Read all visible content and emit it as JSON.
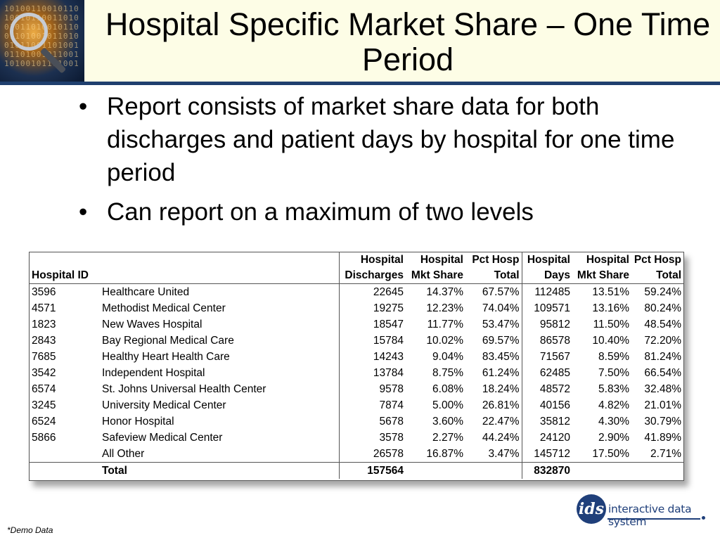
{
  "slide": {
    "title": "Hospital Specific Market Share – One Time Period",
    "bullets": [
      "Report consists of market share data for both discharges and patient days by hospital for one time period",
      "Can report on a maximum of two levels"
    ],
    "bullet_glyph": "•",
    "footnote": "*Demo Data",
    "logo_text": "interactive data system",
    "logo_mark": "ids"
  },
  "table": {
    "header_top": [
      "",
      "",
      "Hospital",
      "Hospital",
      "Pct Hosp",
      "Hospital",
      "Hospital",
      "Pct Hosp"
    ],
    "header_bottom": [
      "Hospital ID",
      "",
      "Discharges",
      "Mkt Share",
      "Total",
      "Days",
      "Mkt Share",
      "Total"
    ],
    "rows": [
      [
        "3596",
        "Healthcare United",
        "22645",
        "14.37%",
        "67.57%",
        "112485",
        "13.51%",
        "59.24%"
      ],
      [
        "4571",
        "Methodist Medical Center",
        "19275",
        "12.23%",
        "74.04%",
        "109571",
        "13.16%",
        "80.24%"
      ],
      [
        "1823",
        "New Waves Hospital",
        "18547",
        "11.77%",
        "53.47%",
        "95812",
        "11.50%",
        "48.54%"
      ],
      [
        "2843",
        "Bay Regional Medical Care",
        "15784",
        "10.02%",
        "69.57%",
        "86578",
        "10.40%",
        "72.20%"
      ],
      [
        "7685",
        "Healthy Heart Health Care",
        "14243",
        "9.04%",
        "83.45%",
        "71567",
        "8.59%",
        "81.24%"
      ],
      [
        "3542",
        "Independent Hospital",
        "13784",
        "8.75%",
        "61.24%",
        "62485",
        "7.50%",
        "66.54%"
      ],
      [
        "6574",
        "St. Johns Universal Health Center",
        "9578",
        "6.08%",
        "18.24%",
        "48572",
        "5.83%",
        "32.48%"
      ],
      [
        "3245",
        "University Medical Center",
        "7874",
        "5.00%",
        "26.81%",
        "40156",
        "4.82%",
        "21.01%"
      ],
      [
        "6524",
        "Honor Hospital",
        "5678",
        "3.60%",
        "22.47%",
        "35812",
        "4.30%",
        "30.79%"
      ],
      [
        "5866",
        "Safeview Medical Center",
        "3578",
        "2.27%",
        "44.24%",
        "24120",
        "2.90%",
        "41.89%"
      ]
    ],
    "other_row": [
      "",
      "All Other",
      "26578",
      "16.87%",
      "3.47%",
      "145712",
      "17.50%",
      "2.71%"
    ],
    "total_row": [
      "",
      "Total",
      "157564",
      "",
      "",
      "832870",
      "",
      ""
    ]
  }
}
